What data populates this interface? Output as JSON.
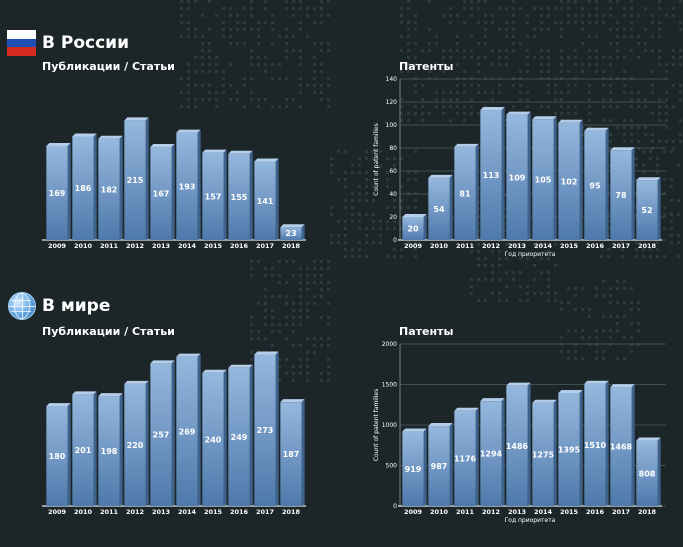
{
  "sections": {
    "russia": {
      "title": "В России"
    },
    "world": {
      "title": "В мире"
    }
  },
  "colors": {
    "background": "#1c2628",
    "bar_top": "#95b8de",
    "bar_bottom": "#4f79ab",
    "flag_white": "#ffffff",
    "flag_blue": "#1f4fb4",
    "flag_red": "#d52b1e"
  },
  "icons": {
    "russia": "russian-flag-icon",
    "world": "globe-icon"
  },
  "chart_data": [
    {
      "id": "ru_pubs",
      "type": "bar",
      "title": "Публикации / Статьи",
      "categories": [
        "2009",
        "2010",
        "2011",
        "2012",
        "2013",
        "2014",
        "2015",
        "2016",
        "2017",
        "2018"
      ],
      "values": [
        169,
        186,
        182,
        215,
        167,
        193,
        157,
        155,
        141,
        23
      ],
      "xlabel": "",
      "ylabel": "",
      "ylim": [
        0,
        230
      ],
      "y_axis_shown": false,
      "grid": false
    },
    {
      "id": "ru_pat",
      "type": "bar",
      "title": "Патенты",
      "categories": [
        "2009",
        "2010",
        "2011",
        "2012",
        "2013",
        "2014",
        "2015",
        "2016",
        "2017",
        "2018"
      ],
      "values": [
        20,
        54,
        81,
        113,
        109,
        105,
        102,
        95,
        78,
        52
      ],
      "xlabel": "Год приоритета",
      "ylabel": "Count of patent families",
      "ylim": [
        0,
        140
      ],
      "yticks": [
        "0",
        "20",
        "40",
        "60",
        "80",
        "100",
        "120",
        "140"
      ],
      "y_axis_shown": true,
      "grid": true
    },
    {
      "id": "w_pubs",
      "type": "bar",
      "title": "Публикации / Статьи",
      "categories": [
        "2009",
        "2010",
        "2011",
        "2012",
        "2013",
        "2014",
        "2015",
        "2016",
        "2017",
        "2018"
      ],
      "values": [
        180,
        201,
        198,
        220,
        257,
        269,
        240,
        249,
        273,
        187
      ],
      "xlabel": "",
      "ylabel": "",
      "ylim": [
        0,
        290
      ],
      "y_axis_shown": false,
      "grid": false
    },
    {
      "id": "w_pat",
      "type": "bar",
      "title": "Патенты",
      "categories": [
        "2009",
        "2010",
        "2011",
        "2012",
        "2013",
        "2014",
        "2015",
        "2016",
        "2017",
        "2018"
      ],
      "values": [
        919,
        987,
        1176,
        1294,
        1486,
        1275,
        1395,
        1510,
        1468,
        808
      ],
      "xlabel": "Год приоритета",
      "ylabel": "Count of patent families",
      "ylim": [
        0,
        2000
      ],
      "yticks": [
        "0",
        "500",
        "1000",
        "1500",
        "2000"
      ],
      "y_axis_shown": true,
      "grid": true
    }
  ]
}
